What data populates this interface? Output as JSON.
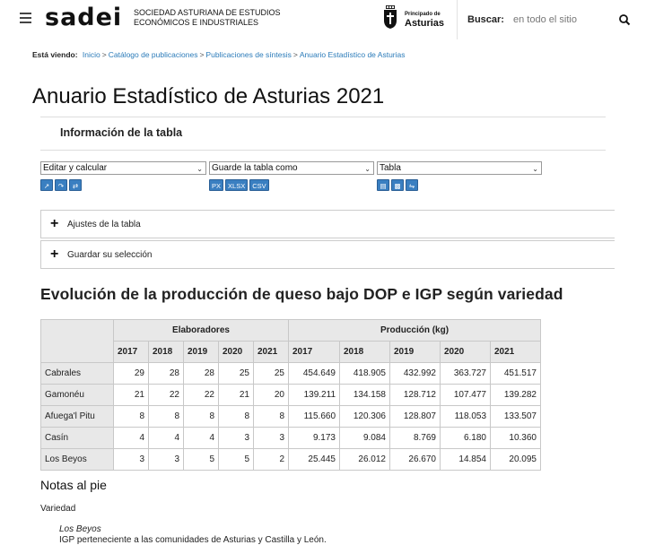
{
  "header": {
    "logo": "sadei",
    "org_line1": "SOCIEDAD ASTURIANA DE ESTUDIOS",
    "org_line2": "ECONÓMICOS E INDUSTRIALES",
    "gov_small": "Principado de",
    "gov_big": "Asturias",
    "search_label": "Buscar:",
    "search_placeholder": "en todo el sitio",
    "icons": {
      "menu": "hamburger-icon",
      "search": "search-icon",
      "crest": "crest-icon"
    }
  },
  "breadcrumb": {
    "label": "Está viendo:",
    "items": [
      "Inicio",
      "Catálogo de publicaciones",
      "Publicaciones de síntesis",
      "Anuario Estadístico de Asturias"
    ],
    "separator": ">"
  },
  "page": {
    "title": "Anuario Estadístico de Asturias 2021",
    "info_title": "Información de la tabla"
  },
  "controls": {
    "select1": "Editar y calcular",
    "select2": "Guarde la tabla como",
    "select3": "Tabla",
    "save_buttons": [
      "PX",
      "XLSX",
      "CSV"
    ],
    "accordion1": "Ajustes de la tabla",
    "accordion2": "Guardar su selección"
  },
  "table": {
    "title": "Evolución de la producción de queso bajo DOP e IGP según variedad",
    "group1": "Elaboradores",
    "group2": "Producción (kg)",
    "years": [
      "2017",
      "2018",
      "2019",
      "2020",
      "2021"
    ],
    "rows": [
      {
        "name": "Cabrales",
        "elab": [
          "29",
          "28",
          "28",
          "25",
          "25"
        ],
        "prod": [
          "454.649",
          "418.905",
          "432.992",
          "363.727",
          "451.517"
        ]
      },
      {
        "name": "Gamonéu",
        "elab": [
          "21",
          "22",
          "22",
          "21",
          "20"
        ],
        "prod": [
          "139.211",
          "134.158",
          "128.712",
          "107.477",
          "139.282"
        ]
      },
      {
        "name": "Afuega'l Pitu",
        "elab": [
          "8",
          "8",
          "8",
          "8",
          "8"
        ],
        "prod": [
          "115.660",
          "120.306",
          "128.807",
          "118.053",
          "133.507"
        ]
      },
      {
        "name": "Casín",
        "elab": [
          "4",
          "4",
          "4",
          "3",
          "3"
        ],
        "prod": [
          "9.173",
          "9.084",
          "8.769",
          "6.180",
          "10.360"
        ]
      },
      {
        "name": "Los Beyos",
        "elab": [
          "3",
          "3",
          "5",
          "5",
          "2"
        ],
        "prod": [
          "25.445",
          "26.012",
          "26.670",
          "14.854",
          "20.095"
        ]
      }
    ]
  },
  "notes": {
    "title": "Notas al pie",
    "subtitle": "Variedad",
    "item_name": "Los Beyos",
    "item_desc": "IGP perteneciente a las comunidades de Asturias y Castilla y León."
  },
  "colors": {
    "link": "#2b7bb9",
    "button": "#3a7fc1",
    "table_header": "#e8e8e8"
  }
}
